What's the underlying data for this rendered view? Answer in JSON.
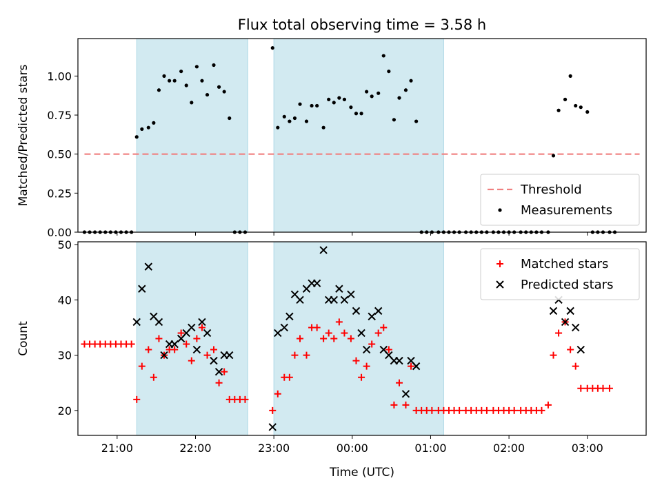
{
  "chart_data": [
    {
      "type": "scatter",
      "title": "Flux total observing time = 3.58 h",
      "xlabel": "",
      "ylabel": "Matched/Predicted stars",
      "ylim": [
        0,
        1.24
      ],
      "yticks": [
        0.0,
        0.25,
        0.5,
        0.75,
        1.0
      ],
      "ytick_labels": [
        "0.00",
        "0.25",
        "0.50",
        "0.75",
        "1.00"
      ],
      "xlim": [
        "20:30",
        "03:45"
      ],
      "xticks": [
        "21:00",
        "22:00",
        "23:00",
        "00:00",
        "01:00",
        "02:00",
        "03:00"
      ],
      "xtick_labels": [
        "",
        "",
        "",
        "",
        "",
        "",
        ""
      ],
      "shaded_intervals": [
        [
          "21:15",
          "22:40"
        ],
        [
          "23:00",
          "01:10"
        ]
      ],
      "shade_color": "#add8e6",
      "legend": {
        "position": "lower-right",
        "entries": [
          "Threshold",
          "Measurements"
        ]
      },
      "threshold": {
        "name": "Threshold",
        "value": 0.5,
        "x": [
          "20:35",
          "03:40"
        ],
        "color": "#f08080",
        "style": "dashed"
      },
      "series": [
        {
          "name": "Measurements",
          "color": "#000000",
          "marker": "dot",
          "points": [
            [
              "20:35",
              0.0
            ],
            [
              "20:39",
              0.0
            ],
            [
              "20:43",
              0.0
            ],
            [
              "20:47",
              0.0
            ],
            [
              "20:51",
              0.0
            ],
            [
              "20:55",
              0.0
            ],
            [
              "20:59",
              0.0
            ],
            [
              "21:03",
              0.0
            ],
            [
              "21:07",
              0.0
            ],
            [
              "21:11",
              0.0
            ],
            [
              "21:15",
              0.61
            ],
            [
              "21:19",
              0.66
            ],
            [
              "21:24",
              0.67
            ],
            [
              "21:28",
              0.7
            ],
            [
              "21:32",
              0.91
            ],
            [
              "21:36",
              1.0
            ],
            [
              "21:40",
              0.97
            ],
            [
              "21:44",
              0.97
            ],
            [
              "21:49",
              1.03
            ],
            [
              "21:53",
              0.94
            ],
            [
              "21:57",
              0.83
            ],
            [
              "22:01",
              1.06
            ],
            [
              "22:05",
              0.97
            ],
            [
              "22:09",
              0.88
            ],
            [
              "22:14",
              1.07
            ],
            [
              "22:18",
              0.93
            ],
            [
              "22:22",
              0.9
            ],
            [
              "22:26",
              0.73
            ],
            [
              "22:30",
              0.0
            ],
            [
              "22:34",
              0.0
            ],
            [
              "22:38",
              0.0
            ],
            [
              "22:59",
              1.18
            ],
            [
              "23:03",
              0.67
            ],
            [
              "23:08",
              0.74
            ],
            [
              "23:12",
              0.71
            ],
            [
              "23:16",
              0.73
            ],
            [
              "23:20",
              0.82
            ],
            [
              "23:25",
              0.71
            ],
            [
              "23:29",
              0.81
            ],
            [
              "23:33",
              0.81
            ],
            [
              "23:38",
              0.67
            ],
            [
              "23:42",
              0.85
            ],
            [
              "23:46",
              0.83
            ],
            [
              "23:50",
              0.86
            ],
            [
              "23:54",
              0.85
            ],
            [
              "23:59",
              0.8
            ],
            [
              "00:03",
              0.76
            ],
            [
              "00:07",
              0.76
            ],
            [
              "00:11",
              0.9
            ],
            [
              "00:15",
              0.87
            ],
            [
              "00:20",
              0.89
            ],
            [
              "00:24",
              1.13
            ],
            [
              "00:28",
              1.03
            ],
            [
              "00:32",
              0.72
            ],
            [
              "00:36",
              0.86
            ],
            [
              "00:41",
              0.91
            ],
            [
              "00:45",
              0.97
            ],
            [
              "00:49",
              0.71
            ],
            [
              "00:53",
              0.0
            ],
            [
              "00:57",
              0.0
            ],
            [
              "01:01",
              0.0
            ],
            [
              "01:06",
              0.0
            ],
            [
              "01:10",
              0.0
            ],
            [
              "01:14",
              0.0
            ],
            [
              "01:18",
              0.0
            ],
            [
              "01:22",
              0.0
            ],
            [
              "01:27",
              0.0
            ],
            [
              "01:31",
              0.0
            ],
            [
              "01:35",
              0.0
            ],
            [
              "01:39",
              0.0
            ],
            [
              "01:43",
              0.0
            ],
            [
              "01:48",
              0.0
            ],
            [
              "01:52",
              0.0
            ],
            [
              "01:56",
              0.0
            ],
            [
              "02:00",
              0.0
            ],
            [
              "02:04",
              0.0
            ],
            [
              "02:09",
              0.0
            ],
            [
              "02:13",
              0.0
            ],
            [
              "02:17",
              0.0
            ],
            [
              "02:21",
              0.0
            ],
            [
              "02:25",
              0.0
            ],
            [
              "02:30",
              0.0
            ],
            [
              "02:34",
              0.49
            ],
            [
              "02:38",
              0.78
            ],
            [
              "02:43",
              0.85
            ],
            [
              "02:47",
              1.0
            ],
            [
              "02:51",
              0.81
            ],
            [
              "02:55",
              0.8
            ],
            [
              "03:00",
              0.77
            ],
            [
              "03:04",
              0.0
            ],
            [
              "03:08",
              0.0
            ],
            [
              "03:12",
              0.0
            ],
            [
              "03:17",
              0.0
            ],
            [
              "03:21",
              0.0
            ]
          ]
        }
      ]
    },
    {
      "type": "scatter",
      "title": "",
      "xlabel": "Time (UTC)",
      "ylabel": "Count",
      "ylim": [
        15.5,
        50.5
      ],
      "yticks": [
        20,
        30,
        40,
        50
      ],
      "ytick_labels": [
        "20",
        "30",
        "40",
        "50"
      ],
      "xlim": [
        "20:30",
        "03:45"
      ],
      "xticks": [
        "21:00",
        "22:00",
        "23:00",
        "00:00",
        "01:00",
        "02:00",
        "03:00"
      ],
      "xtick_labels": [
        "21:00",
        "22:00",
        "23:00",
        "00:00",
        "01:00",
        "02:00",
        "03:00"
      ],
      "shaded_intervals": [
        [
          "21:15",
          "22:40"
        ],
        [
          "23:00",
          "01:10"
        ]
      ],
      "shade_color": "#add8e6",
      "legend": {
        "position": "top-right",
        "entries": [
          "Matched stars",
          "Predicted stars"
        ]
      },
      "series": [
        {
          "name": "Matched stars",
          "color": "#ff0000",
          "marker": "plus",
          "points": [
            [
              "20:35",
              32
            ],
            [
              "20:39",
              32
            ],
            [
              "20:43",
              32
            ],
            [
              "20:47",
              32
            ],
            [
              "20:51",
              32
            ],
            [
              "20:55",
              32
            ],
            [
              "20:59",
              32
            ],
            [
              "21:03",
              32
            ],
            [
              "21:07",
              32
            ],
            [
              "21:11",
              32
            ],
            [
              "21:15",
              22
            ],
            [
              "21:19",
              28
            ],
            [
              "21:24",
              31
            ],
            [
              "21:28",
              26
            ],
            [
              "21:32",
              33
            ],
            [
              "21:36",
              30
            ],
            [
              "21:40",
              31
            ],
            [
              "21:44",
              31
            ],
            [
              "21:49",
              34
            ],
            [
              "21:53",
              32
            ],
            [
              "21:57",
              29
            ],
            [
              "22:01",
              33
            ],
            [
              "22:05",
              35
            ],
            [
              "22:09",
              30
            ],
            [
              "22:14",
              31
            ],
            [
              "22:18",
              25
            ],
            [
              "22:22",
              27
            ],
            [
              "22:26",
              22
            ],
            [
              "22:30",
              22
            ],
            [
              "22:34",
              22
            ],
            [
              "22:38",
              22
            ],
            [
              "22:59",
              20
            ],
            [
              "23:03",
              23
            ],
            [
              "23:08",
              26
            ],
            [
              "23:12",
              26
            ],
            [
              "23:16",
              30
            ],
            [
              "23:20",
              33
            ],
            [
              "23:25",
              30
            ],
            [
              "23:29",
              35
            ],
            [
              "23:33",
              35
            ],
            [
              "23:38",
              33
            ],
            [
              "23:42",
              34
            ],
            [
              "23:46",
              33
            ],
            [
              "23:50",
              36
            ],
            [
              "23:54",
              34
            ],
            [
              "23:59",
              33
            ],
            [
              "00:03",
              29
            ],
            [
              "00:07",
              26
            ],
            [
              "00:11",
              28
            ],
            [
              "00:15",
              32
            ],
            [
              "00:20",
              34
            ],
            [
              "00:24",
              35
            ],
            [
              "00:28",
              31
            ],
            [
              "00:32",
              21
            ],
            [
              "00:36",
              25
            ],
            [
              "00:41",
              21
            ],
            [
              "00:45",
              28
            ],
            [
              "00:49",
              20
            ],
            [
              "00:53",
              20
            ],
            [
              "00:57",
              20
            ],
            [
              "01:01",
              20
            ],
            [
              "01:06",
              20
            ],
            [
              "01:10",
              20
            ],
            [
              "01:14",
              20
            ],
            [
              "01:18",
              20
            ],
            [
              "01:22",
              20
            ],
            [
              "01:27",
              20
            ],
            [
              "01:31",
              20
            ],
            [
              "01:35",
              20
            ],
            [
              "01:39",
              20
            ],
            [
              "01:43",
              20
            ],
            [
              "01:48",
              20
            ],
            [
              "01:52",
              20
            ],
            [
              "01:56",
              20
            ],
            [
              "02:00",
              20
            ],
            [
              "02:04",
              20
            ],
            [
              "02:09",
              20
            ],
            [
              "02:13",
              20
            ],
            [
              "02:17",
              20
            ],
            [
              "02:21",
              20
            ],
            [
              "02:25",
              20
            ],
            [
              "02:30",
              21
            ],
            [
              "02:34",
              30
            ],
            [
              "02:38",
              34
            ],
            [
              "02:43",
              36
            ],
            [
              "02:47",
              31
            ],
            [
              "02:51",
              28
            ],
            [
              "02:55",
              24
            ],
            [
              "03:00",
              24
            ],
            [
              "03:04",
              24
            ],
            [
              "03:08",
              24
            ],
            [
              "03:12",
              24
            ],
            [
              "03:17",
              24
            ]
          ]
        },
        {
          "name": "Predicted stars",
          "color": "#000000",
          "marker": "x",
          "points": [
            [
              "21:15",
              36
            ],
            [
              "21:19",
              42
            ],
            [
              "21:24",
              46
            ],
            [
              "21:28",
              37
            ],
            [
              "21:32",
              36
            ],
            [
              "21:36",
              30
            ],
            [
              "21:40",
              32
            ],
            [
              "21:44",
              32
            ],
            [
              "21:49",
              33
            ],
            [
              "21:53",
              34
            ],
            [
              "21:57",
              35
            ],
            [
              "22:01",
              31
            ],
            [
              "22:05",
              36
            ],
            [
              "22:09",
              34
            ],
            [
              "22:14",
              29
            ],
            [
              "22:18",
              27
            ],
            [
              "22:22",
              30
            ],
            [
              "22:26",
              30
            ],
            [
              "22:59",
              17
            ],
            [
              "23:03",
              34
            ],
            [
              "23:08",
              35
            ],
            [
              "23:12",
              37
            ],
            [
              "23:16",
              41
            ],
            [
              "23:20",
              40
            ],
            [
              "23:25",
              42
            ],
            [
              "23:29",
              43
            ],
            [
              "23:33",
              43
            ],
            [
              "23:38",
              49
            ],
            [
              "23:42",
              40
            ],
            [
              "23:46",
              40
            ],
            [
              "23:50",
              42
            ],
            [
              "23:54",
              40
            ],
            [
              "23:59",
              41
            ],
            [
              "00:03",
              38
            ],
            [
              "00:07",
              34
            ],
            [
              "00:11",
              31
            ],
            [
              "00:15",
              37
            ],
            [
              "00:20",
              38
            ],
            [
              "00:24",
              31
            ],
            [
              "00:28",
              30
            ],
            [
              "00:32",
              29
            ],
            [
              "00:36",
              29
            ],
            [
              "00:41",
              23
            ],
            [
              "00:45",
              29
            ],
            [
              "00:49",
              28
            ],
            [
              "02:34",
              38
            ],
            [
              "02:38",
              40
            ],
            [
              "02:43",
              36
            ],
            [
              "02:47",
              38
            ],
            [
              "02:51",
              35
            ],
            [
              "02:55",
              31
            ]
          ]
        }
      ]
    }
  ]
}
